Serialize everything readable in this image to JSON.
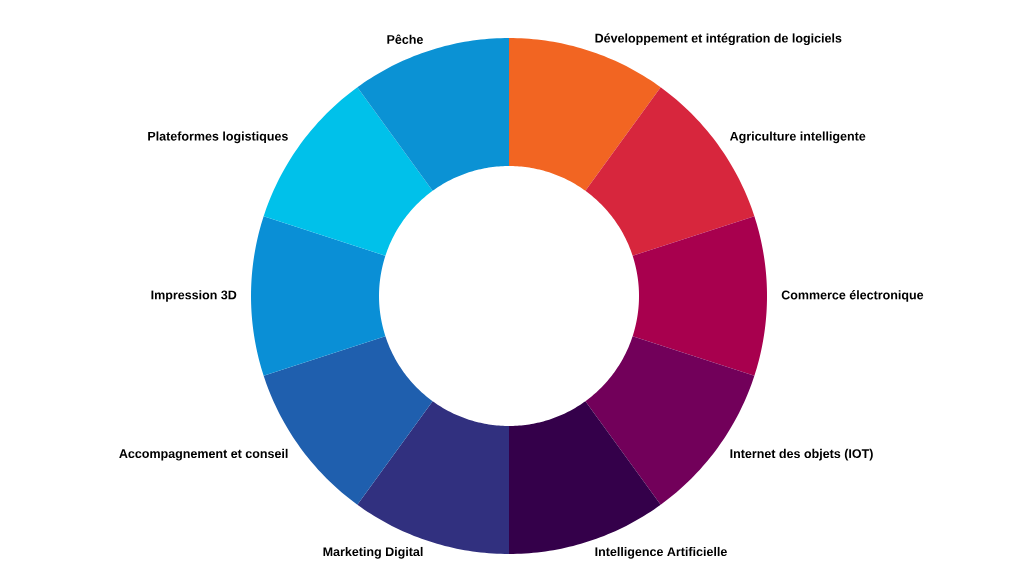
{
  "chart_data": {
    "type": "donut",
    "categories": [
      "Développement et intégration de logiciels",
      "Agriculture intelligente",
      "Commerce électronique",
      "Internet des objets (IOT)",
      "Intelligence Artificielle",
      "Marketing Digital",
      "Accompagnement et conseil",
      "Impression 3D",
      "Plateformes logistiques",
      "Pêche"
    ],
    "values": [
      10,
      10,
      10,
      10,
      10,
      10,
      10,
      10,
      10,
      10
    ],
    "colors": [
      "#f26522",
      "#d7263d",
      "#a8004e",
      "#72005a",
      "#34004a",
      "#31307f",
      "#1f5fae",
      "#0a8fd6",
      "#00c1ea",
      "#0b92d4"
    ]
  }
}
